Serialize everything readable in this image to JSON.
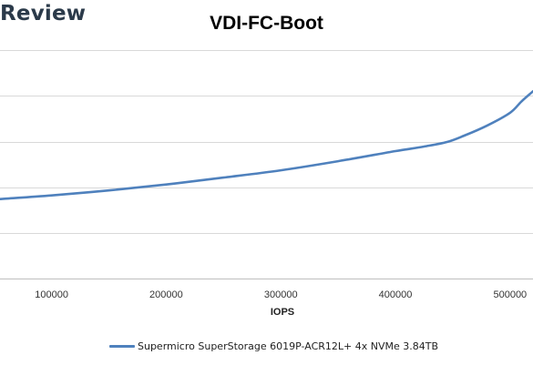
{
  "header": {
    "brand": "Review"
  },
  "chart_data": {
    "type": "line",
    "title": "VDI-FC-Boot",
    "xlabel": "IOPS",
    "ylabel": "",
    "xlim": [
      55000,
      520000
    ],
    "ylim": [
      0,
      6
    ],
    "x_ticks": [
      100000,
      200000,
      300000,
      400000,
      500000
    ],
    "x_tick_labels": [
      "100000",
      "200000",
      "300000",
      "400000",
      "500000"
    ],
    "y_gridlines": [
      1,
      2,
      3,
      4,
      5
    ],
    "grid": true,
    "legend_position": "bottom",
    "series": [
      {
        "name": "Supermicro SuperStorage 6019P-ACR12L+ 4x NVMe 3.84TB",
        "color": "#4f81bd",
        "points": [
          [
            55000,
            1.74
          ],
          [
            100000,
            1.82
          ],
          [
            150000,
            1.93
          ],
          [
            200000,
            2.06
          ],
          [
            250000,
            2.21
          ],
          [
            300000,
            2.37
          ],
          [
            350000,
            2.57
          ],
          [
            400000,
            2.79
          ],
          [
            425000,
            2.89
          ],
          [
            445000,
            2.99
          ],
          [
            460000,
            3.13
          ],
          [
            480000,
            3.35
          ],
          [
            500000,
            3.63
          ],
          [
            510000,
            3.88
          ],
          [
            520000,
            4.1
          ]
        ]
      }
    ]
  }
}
